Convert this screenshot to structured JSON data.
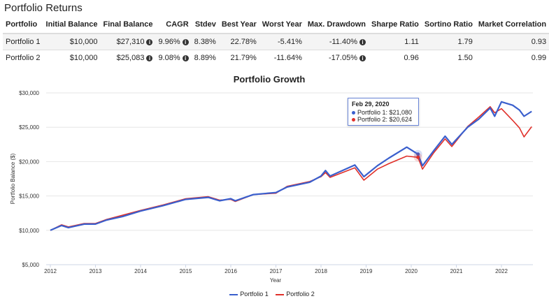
{
  "title": "Portfolio Returns",
  "table": {
    "headers": [
      "Portfolio",
      "Initial Balance",
      "Final Balance",
      "CAGR",
      "Stdev",
      "Best Year",
      "Worst Year",
      "Max. Drawdown",
      "Sharpe Ratio",
      "Sortino Ratio",
      "Market Correlation"
    ],
    "rows": [
      [
        "Portfolio 1",
        "$10,000",
        "$27,310",
        "9.96%",
        "8.38%",
        "22.78%",
        "-5.41%",
        "-11.40%",
        "1.11",
        "1.79",
        "0.93"
      ],
      [
        "Portfolio 2",
        "$10,000",
        "$25,083",
        "9.08%",
        "8.89%",
        "21.79%",
        "-11.64%",
        "-17.05%",
        "0.96",
        "1.50",
        "0.99"
      ]
    ],
    "info_icon_columns": [
      2,
      3,
      7
    ]
  },
  "tooltip": {
    "date": "Feb 29, 2020",
    "p1": "Portfolio 1: $21,080",
    "p2": "Portfolio 2: $20,624"
  },
  "chart_data": {
    "type": "line",
    "title": "Portfolio Growth",
    "xlabel": "Year",
    "ylabel": "Portfolio Balance ($)",
    "xlim": [
      2012,
      2022.7
    ],
    "ylim": [
      5000,
      30000
    ],
    "yticks": [
      "$5,000",
      "$10,000",
      "$15,000",
      "$20,000",
      "$25,000",
      "$30,000"
    ],
    "ytick_values": [
      5000,
      10000,
      15000,
      20000,
      25000,
      30000
    ],
    "xticks": [
      "2012",
      "2013",
      "2014",
      "2015",
      "2016",
      "2017",
      "2018",
      "2019",
      "2020",
      "2021",
      "2022"
    ],
    "grid": true,
    "legend": "bottom",
    "x": [
      2012.0,
      2012.25,
      2012.4,
      2012.75,
      2013.0,
      2013.25,
      2013.6,
      2014.0,
      2014.5,
      2015.0,
      2015.5,
      2015.75,
      2016.0,
      2016.1,
      2016.5,
      2017.0,
      2017.25,
      2017.75,
      2018.0,
      2018.1,
      2018.2,
      2018.75,
      2018.95,
      2019.25,
      2019.5,
      2019.9,
      2020.15,
      2020.25,
      2020.5,
      2020.75,
      2020.9,
      2021.25,
      2021.5,
      2021.75,
      2021.85,
      2022.0,
      2022.25,
      2022.4,
      2022.5,
      2022.67
    ],
    "series": [
      {
        "name": "Portfolio 1",
        "color": "#3a5fcd",
        "values": [
          10000,
          10700,
          10400,
          10900,
          10900,
          11500,
          12000,
          12800,
          13600,
          14500,
          14800,
          14300,
          14600,
          14300,
          15200,
          15500,
          16300,
          17000,
          17900,
          18700,
          17900,
          19500,
          17800,
          19400,
          20500,
          22100,
          21080,
          19400,
          21600,
          23700,
          22500,
          25000,
          26200,
          27800,
          26600,
          28700,
          28200,
          27500,
          26600,
          27310
        ]
      },
      {
        "name": "Portfolio 2",
        "color": "#e0302a",
        "values": [
          10000,
          10800,
          10500,
          11000,
          11000,
          11600,
          12200,
          12900,
          13700,
          14600,
          14900,
          14400,
          14500,
          14200,
          15200,
          15400,
          16400,
          17100,
          17800,
          18400,
          17700,
          19100,
          17300,
          18900,
          19700,
          20800,
          20624,
          18900,
          21300,
          23300,
          22200,
          25100,
          26500,
          28000,
          27100,
          27700,
          26000,
          24900,
          23600,
          25083
        ]
      }
    ]
  }
}
